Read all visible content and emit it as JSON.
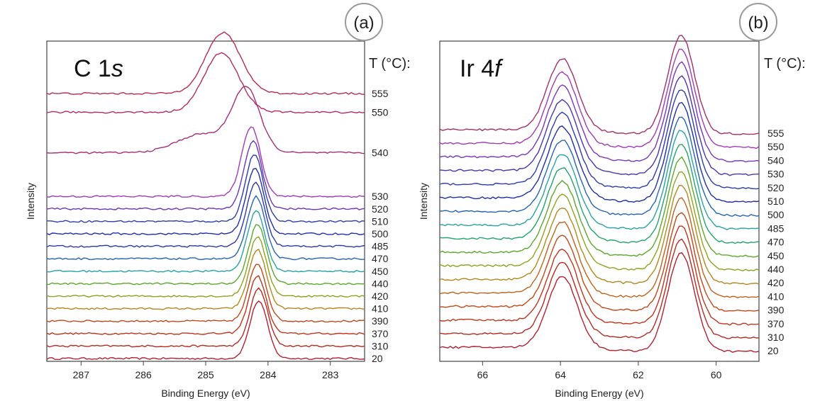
{
  "chart_data": [
    {
      "type": "line",
      "panel_badge": "(a)",
      "title_main": "C 1",
      "title_sub": "s",
      "xlabel": "Binding Energy (eV)",
      "ylabel": "Intensity",
      "legend_title": "T (°C):",
      "x_reversed": true,
      "xlim": [
        287.55,
        282.45
      ],
      "xticks": [
        287,
        286,
        285,
        284,
        283
      ],
      "series": [
        {
          "name": "20",
          "color": "#b5202e",
          "offset": 0.0,
          "peaks": [
            [
              284.15,
              0.185,
              0.14
            ]
          ]
        },
        {
          "name": "310",
          "color": "#b62a24",
          "offset": 0.04,
          "peaks": [
            [
              284.15,
              0.185,
              0.14
            ]
          ]
        },
        {
          "name": "370",
          "color": "#c0341e",
          "offset": 0.08,
          "peaks": [
            [
              284.17,
              0.185,
              0.14
            ]
          ]
        },
        {
          "name": "390",
          "color": "#c2481a",
          "offset": 0.12,
          "peaks": [
            [
              284.17,
              0.185,
              0.14
            ]
          ]
        },
        {
          "name": "410",
          "color": "#b5861c",
          "offset": 0.16,
          "peaks": [
            [
              284.17,
              0.19,
              0.14
            ]
          ]
        },
        {
          "name": "420",
          "color": "#8ea21e",
          "offset": 0.2,
          "peaks": [
            [
              284.17,
              0.19,
              0.14
            ]
          ]
        },
        {
          "name": "440",
          "color": "#5aa82a",
          "offset": 0.24,
          "peaks": [
            [
              284.17,
              0.19,
              0.14
            ]
          ]
        },
        {
          "name": "450",
          "color": "#27a3a4",
          "offset": 0.28,
          "peaks": [
            [
              284.19,
              0.195,
              0.14
            ]
          ]
        },
        {
          "name": "470",
          "color": "#2563b6",
          "offset": 0.32,
          "peaks": [
            [
              284.19,
              0.2,
              0.14
            ]
          ]
        },
        {
          "name": "485",
          "color": "#2a3aa8",
          "offset": 0.36,
          "peaks": [
            [
              284.2,
              0.205,
              0.14
            ]
          ]
        },
        {
          "name": "500",
          "color": "#1d2fa8",
          "offset": 0.4,
          "peaks": [
            [
              284.21,
              0.21,
              0.14
            ]
          ]
        },
        {
          "name": "510",
          "color": "#2d3dac",
          "offset": 0.44,
          "peaks": [
            [
              284.22,
              0.215,
              0.14
            ]
          ]
        },
        {
          "name": "520",
          "color": "#6a36b8",
          "offset": 0.48,
          "peaks": [
            [
              284.24,
              0.22,
              0.14
            ]
          ]
        },
        {
          "name": "530",
          "color": "#a23ab8",
          "offset": 0.52,
          "peaks": [
            [
              284.27,
              0.225,
              0.15
            ]
          ]
        },
        {
          "name": "540",
          "color": "#a42e7a",
          "offset": 0.66,
          "peaks": [
            [
              284.35,
              0.2,
              0.22
            ],
            [
              285.05,
              0.06,
              0.4
            ]
          ]
        },
        {
          "name": "550",
          "color": "#b32b62",
          "offset": 0.79,
          "peaks": [
            [
              284.75,
              0.19,
              0.28
            ]
          ]
        },
        {
          "name": "555",
          "color": "#b82a52",
          "offset": 0.85,
          "peaks": [
            [
              284.72,
              0.195,
              0.28
            ]
          ]
        }
      ]
    },
    {
      "type": "line",
      "panel_badge": "(b)",
      "title_main": "Ir 4",
      "title_sub": "f",
      "xlabel": "Binding Energy (eV)",
      "ylabel": "Intensity",
      "legend_title": "T (°C):",
      "x_reversed": true,
      "xlim": [
        67.1,
        58.9
      ],
      "xticks": [
        66,
        64,
        62,
        60
      ],
      "series": [
        {
          "name": "20",
          "color": "#b5202e",
          "offset": 0.0
        },
        {
          "name": "310",
          "color": "#b62a24",
          "offset": 0.04
        },
        {
          "name": "370",
          "color": "#c0341e",
          "offset": 0.08
        },
        {
          "name": "390",
          "color": "#c2481a",
          "offset": 0.12
        },
        {
          "name": "410",
          "color": "#c2621c",
          "offset": 0.16
        },
        {
          "name": "420",
          "color": "#b5861c",
          "offset": 0.2
        },
        {
          "name": "440",
          "color": "#8ea21e",
          "offset": 0.24
        },
        {
          "name": "450",
          "color": "#5aa82a",
          "offset": 0.28
        },
        {
          "name": "470",
          "color": "#22a36a",
          "offset": 0.32
        },
        {
          "name": "485",
          "color": "#27a3a4",
          "offset": 0.36
        },
        {
          "name": "500",
          "color": "#2563b6",
          "offset": 0.4
        },
        {
          "name": "510",
          "color": "#1d2fa8",
          "offset": 0.44
        },
        {
          "name": "520",
          "color": "#2d3dac",
          "offset": 0.48
        },
        {
          "name": "530",
          "color": "#4a34b0",
          "offset": 0.52
        },
        {
          "name": "540",
          "color": "#7a36b8",
          "offset": 0.56
        },
        {
          "name": "550",
          "color": "#a23ab8",
          "offset": 0.6
        },
        {
          "name": "555",
          "color": "#a42e6a",
          "offset": 0.64
        }
      ],
      "peaks": [
        [
          63.95,
          0.21,
          0.38
        ],
        [
          60.9,
          0.29,
          0.34
        ]
      ]
    }
  ]
}
